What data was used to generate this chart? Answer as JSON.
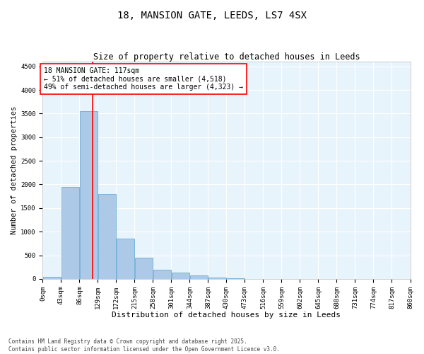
{
  "title": "18, MANSION GATE, LEEDS, LS7 4SX",
  "subtitle": "Size of property relative to detached houses in Leeds",
  "xlabel": "Distribution of detached houses by size in Leeds",
  "ylabel": "Number of detached properties",
  "bin_edges": [
    0,
    43,
    86,
    129,
    172,
    215,
    258,
    301,
    344,
    387,
    430,
    473,
    516,
    559,
    602,
    645,
    688,
    731,
    774,
    817,
    860
  ],
  "bar_heights": [
    50,
    1950,
    3550,
    1800,
    850,
    450,
    200,
    130,
    70,
    30,
    15,
    5,
    3,
    0,
    0,
    0,
    0,
    0,
    0,
    0
  ],
  "bar_color": "#adc9e8",
  "bar_edge_color": "#6aaed6",
  "vline_x": 117,
  "vline_color": "red",
  "ylim": [
    0,
    4600
  ],
  "yticks": [
    0,
    500,
    1000,
    1500,
    2000,
    2500,
    3000,
    3500,
    4000,
    4500
  ],
  "annotation_text": "18 MANSION GATE: 117sqm\n← 51% of detached houses are smaller (4,518)\n49% of semi-detached houses are larger (4,323) →",
  "annotation_box_color": "red",
  "bg_color": "#e8f4fb",
  "footer_line1": "Contains HM Land Registry data © Crown copyright and database right 2025.",
  "footer_line2": "Contains public sector information licensed under the Open Government Licence v3.0.",
  "title_fontsize": 10,
  "subtitle_fontsize": 8.5,
  "xlabel_fontsize": 8,
  "ylabel_fontsize": 7.5,
  "tick_fontsize": 6.5,
  "annotation_fontsize": 7,
  "footer_fontsize": 5.5
}
